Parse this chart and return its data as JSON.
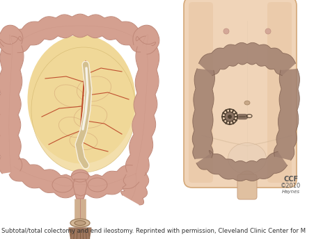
{
  "figsize": [
    4.74,
    3.44
  ],
  "dpi": 100,
  "bg_color": "#ffffff",
  "caption": "Subtotal/total colectomy and end ileostomy. Reprinted with permission, Cleveland Clinic Center for M",
  "caption_fontsize": 6.2,
  "caption_color": "#333333",
  "colon_pink": "#d4a090",
  "colon_edge": "#c08878",
  "colon_haustral": "#e8c0b0",
  "mesentery_bg": "#f0d898",
  "mesentery_vessel": "#c05030",
  "body_skin_light": "#f0d4b8",
  "body_skin_mid": "#e8c4a0",
  "body_skin_dark": "#d4a878",
  "body_outline": "#c8a070",
  "colon_body_color": "#a08070",
  "colon_body_edge": "#806050",
  "stoma_dark": "#504030",
  "stoma_mid": "#887060",
  "stoma_light": "#c0a888",
  "ileum_color": "#e8c898",
  "ileostomy_color": "#c09070",
  "bag_color": "#c0908060",
  "white_highlight": "#f8f0e0",
  "ccf_color": "#555555",
  "nipple_color": "#d4a898",
  "penis_color": "#e0c0a0",
  "bladder_color": "#e8d4c0"
}
